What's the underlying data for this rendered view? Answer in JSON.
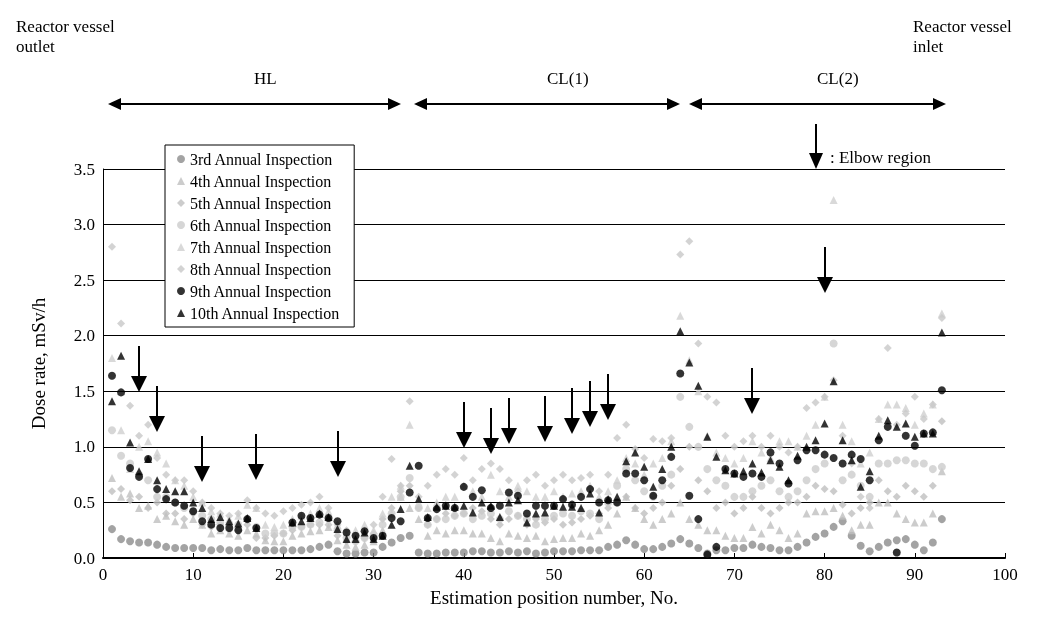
{
  "chart_data": {
    "type": "scatter",
    "xlabel": "Estimation position number, No.",
    "ylabel": "Dose rate, mSv/h",
    "xlim": [
      0,
      100
    ],
    "xticks": [
      0,
      10,
      20,
      30,
      40,
      50,
      60,
      70,
      80,
      90,
      100
    ],
    "ylim": [
      0,
      3.5
    ],
    "yticks": [
      {
        "value": 0,
        "label": "0.0"
      },
      0.5,
      {
        "value": 1,
        "label": "1.0"
      },
      1.5,
      {
        "value": 2,
        "label": "2.0"
      },
      2.5,
      {
        "value": 3,
        "label": "3.0"
      },
      3.5
    ],
    "grid": "y",
    "legend": "top left",
    "x": [
      1,
      2,
      3,
      4,
      5,
      6,
      7,
      8,
      9,
      10,
      11,
      12,
      13,
      14,
      15,
      16,
      17,
      18,
      19,
      20,
      21,
      22,
      23,
      24,
      25,
      26,
      27,
      28,
      29,
      30,
      31,
      32,
      33,
      34,
      35,
      36,
      37,
      38,
      39,
      40,
      41,
      42,
      43,
      44,
      45,
      46,
      47,
      48,
      49,
      50,
      51,
      52,
      53,
      54,
      55,
      56,
      57,
      58,
      59,
      60,
      61,
      62,
      63,
      64,
      65,
      66,
      67,
      68,
      69,
      70,
      71,
      72,
      73,
      74,
      75,
      76,
      77,
      78,
      79,
      80,
      81,
      82,
      83,
      84,
      85,
      86,
      87,
      88,
      89,
      90,
      91,
      92,
      93
    ],
    "series": [
      {
        "name": "3rd Annual Inspection",
        "color": "#8c8c8c",
        "marker": "circle",
        "values": [
          0.26,
          0.17,
          0.15,
          0.14,
          0.14,
          0.12,
          0.1,
          0.09,
          0.09,
          0.09,
          0.09,
          0.07,
          0.08,
          0.07,
          0.07,
          0.09,
          0.07,
          0.07,
          0.07,
          0.07,
          0.07,
          0.07,
          0.08,
          0.1,
          0.12,
          0.06,
          0.04,
          0.04,
          0.05,
          0.05,
          0.1,
          0.14,
          0.18,
          0.2,
          0.05,
          0.04,
          0.04,
          0.05,
          0.05,
          0.05,
          0.06,
          0.06,
          0.05,
          0.05,
          0.06,
          0.05,
          0.06,
          0.04,
          0.05,
          0.06,
          0.06,
          0.06,
          0.07,
          0.07,
          0.07,
          0.1,
          0.12,
          0.16,
          0.12,
          0.08,
          0.08,
          0.1,
          0.13,
          0.17,
          0.13,
          0.09,
          0.04,
          0.07,
          0.07,
          0.09,
          0.09,
          0.12,
          0.1,
          0.09,
          0.07,
          0.07,
          0.1,
          0.14,
          0.19,
          0.22,
          0.28,
          0.33,
          0.2,
          0.11,
          0.06,
          0.1,
          0.14,
          0.16,
          0.17,
          0.12,
          0.07,
          0.14,
          0.35
        ]
      },
      {
        "name": "4th Annual Inspection",
        "color": "#bfbfbf",
        "marker": "triangle",
        "values": [
          0.72,
          0.55,
          0.58,
          0.45,
          0.47,
          0.35,
          0.38,
          0.33,
          0.3,
          0.35,
          0.3,
          0.22,
          0.25,
          0.22,
          0.2,
          0.25,
          0.22,
          0.16,
          0.15,
          0.15,
          0.2,
          0.22,
          0.24,
          0.25,
          0.28,
          0.16,
          0.12,
          0.1,
          0.12,
          0.15,
          0.25,
          0.4,
          0.55,
          0.45,
          0.35,
          0.2,
          0.25,
          0.22,
          0.25,
          0.25,
          0.22,
          0.22,
          0.18,
          0.15,
          0.22,
          0.2,
          0.18,
          0.2,
          0.15,
          0.17,
          0.18,
          0.18,
          0.22,
          0.2,
          0.25,
          0.3,
          0.4,
          0.55,
          0.45,
          0.35,
          0.3,
          0.35,
          0.4,
          0.5,
          0.35,
          0.3,
          0.25,
          0.25,
          0.2,
          0.18,
          0.18,
          0.28,
          0.22,
          0.3,
          0.25,
          0.18,
          0.22,
          0.4,
          0.42,
          0.42,
          0.45,
          0.38,
          0.25,
          0.3,
          0.3,
          0.5,
          0.5,
          0.4,
          0.35,
          0.32,
          0.32,
          0.4,
          0.78
        ]
      },
      {
        "name": "5th Annual Inspection",
        "color": "#bfbfbf",
        "marker": "diamond",
        "values": [
          0.6,
          0.62,
          0.52,
          0.55,
          0.45,
          0.5,
          0.4,
          0.4,
          0.35,
          0.4,
          0.3,
          0.28,
          0.3,
          0.25,
          0.25,
          0.3,
          0.18,
          0.18,
          0.2,
          0.22,
          0.25,
          0.28,
          0.3,
          0.3,
          0.3,
          0.2,
          0.15,
          0.15,
          0.18,
          0.22,
          0.35,
          0.45,
          0.6,
          0.65,
          0.45,
          0.3,
          0.35,
          0.4,
          0.38,
          0.4,
          0.45,
          0.42,
          0.35,
          0.3,
          0.35,
          0.38,
          0.3,
          0.35,
          0.32,
          0.35,
          0.3,
          0.32,
          0.35,
          0.38,
          0.4,
          0.45,
          0.5,
          0.55,
          0.45,
          0.4,
          0.45,
          0.5,
          0.65,
          0.8,
          1.0,
          0.7,
          0.6,
          0.45,
          0.5,
          0.4,
          0.45,
          0.55,
          0.45,
          0.4,
          0.45,
          0.5,
          0.5,
          0.55,
          0.65,
          0.62,
          0.6,
          0.48,
          0.4,
          0.45,
          0.5,
          0.7,
          0.6,
          0.55,
          0.65,
          0.6,
          0.55,
          0.65,
          1.23
        ]
      },
      {
        "name": "6th Annual Inspection",
        "color": "#cccccc",
        "marker": "circle",
        "values": [
          1.15,
          0.92,
          0.85,
          0.75,
          0.7,
          0.55,
          0.55,
          0.5,
          0.45,
          0.42,
          0.38,
          0.35,
          0.32,
          0.3,
          0.3,
          0.35,
          0.28,
          0.22,
          0.22,
          0.22,
          0.28,
          0.28,
          0.3,
          0.32,
          0.35,
          0.25,
          0.18,
          0.15,
          0.18,
          0.2,
          0.3,
          0.4,
          0.55,
          0.72,
          0.45,
          0.3,
          0.35,
          0.35,
          0.38,
          0.4,
          0.35,
          0.38,
          0.4,
          0.35,
          0.42,
          0.38,
          0.35,
          0.3,
          0.35,
          0.38,
          0.4,
          0.38,
          0.42,
          0.4,
          0.35,
          0.5,
          0.65,
          0.8,
          0.7,
          0.6,
          0.55,
          0.65,
          0.75,
          1.45,
          1.18,
          1.0,
          0.8,
          0.7,
          0.65,
          0.55,
          0.55,
          0.6,
          0.65,
          0.7,
          0.6,
          0.55,
          0.6,
          0.7,
          0.8,
          0.85,
          1.93,
          0.7,
          0.75,
          0.65,
          0.55,
          0.85,
          0.85,
          0.88,
          0.88,
          0.85,
          0.85,
          0.8,
          0.82
        ]
      },
      {
        "name": "7th Annual Inspection",
        "color": "#d0d0d0",
        "marker": "triangle",
        "values": [
          1.8,
          1.15,
          0.8,
          1.0,
          1.05,
          0.95,
          0.85,
          0.7,
          0.65,
          0.55,
          0.5,
          0.42,
          0.4,
          0.35,
          0.38,
          0.48,
          0.45,
          0.3,
          0.28,
          0.3,
          0.35,
          0.38,
          0.4,
          0.45,
          0.42,
          0.3,
          0.22,
          0.25,
          0.3,
          0.25,
          0.4,
          0.55,
          0.65,
          1.2,
          0.5,
          0.45,
          0.5,
          0.55,
          0.55,
          0.65,
          0.6,
          0.55,
          0.75,
          0.6,
          0.55,
          0.65,
          0.6,
          0.55,
          0.55,
          0.6,
          0.55,
          0.58,
          0.6,
          0.65,
          0.55,
          0.6,
          0.7,
          0.9,
          0.85,
          0.75,
          0.85,
          0.9,
          1.05,
          2.18,
          1.78,
          1.5,
          1.1,
          0.95,
          0.9,
          0.85,
          0.9,
          1.05,
          0.95,
          0.9,
          1.05,
          1.05,
          1.0,
          1.1,
          1.2,
          1.45,
          3.22,
          1.2,
          1.05,
          0.85,
          0.95,
          1.25,
          1.38,
          1.38,
          1.35,
          1.2,
          1.3,
          1.38,
          2.2
        ]
      },
      {
        "name": "8th Annual Inspection",
        "color": "#c8c8c8",
        "marker": "diamond",
        "values": [
          2.8,
          2.11,
          1.37,
          1.1,
          1.2,
          0.9,
          0.75,
          0.7,
          0.7,
          0.6,
          0.5,
          0.45,
          0.4,
          0.38,
          0.4,
          0.52,
          0.45,
          0.4,
          0.38,
          0.42,
          0.45,
          0.48,
          0.5,
          0.55,
          0.45,
          0.3,
          0.25,
          0.2,
          0.25,
          0.3,
          0.55,
          0.89,
          0.65,
          1.41,
          0.55,
          0.65,
          0.75,
          0.8,
          0.75,
          0.9,
          0.7,
          0.8,
          0.85,
          0.8,
          0.7,
          0.6,
          0.7,
          0.75,
          0.65,
          0.7,
          0.75,
          0.7,
          0.72,
          0.75,
          0.6,
          0.75,
          1.08,
          1.2,
          0.98,
          0.9,
          1.07,
          1.05,
          1.08,
          2.73,
          2.85,
          1.93,
          1.45,
          1.4,
          1.1,
          1.0,
          1.05,
          1.1,
          1.0,
          1.1,
          1.0,
          0.95,
          1.0,
          1.35,
          1.4,
          1.45,
          1.6,
          1.1,
          0.85,
          0.55,
          0.45,
          1.25,
          1.89,
          1.2,
          1.3,
          1.45,
          1.25,
          1.38,
          2.16
        ]
      },
      {
        "name": "9th Annual Inspection",
        "color": "#000000",
        "marker": "circle",
        "values": [
          1.64,
          1.49,
          0.81,
          0.73,
          0.89,
          0.62,
          0.53,
          0.5,
          0.47,
          0.42,
          0.33,
          0.3,
          0.27,
          0.27,
          0.25,
          0.35,
          0.27,
          null,
          null,
          null,
          0.32,
          0.38,
          0.36,
          0.39,
          0.36,
          0.33,
          0.23,
          0.2,
          0.24,
          0.18,
          0.2,
          0.36,
          0.33,
          0.59,
          0.83,
          0.36,
          0.44,
          0.47,
          0.45,
          0.64,
          0.55,
          0.61,
          0.45,
          0.47,
          0.59,
          0.56,
          0.4,
          0.47,
          0.47,
          0.47,
          0.53,
          0.48,
          0.55,
          0.62,
          0.5,
          0.52,
          0.5,
          0.76,
          0.76,
          0.7,
          0.56,
          0.7,
          0.91,
          1.66,
          0.56,
          0.35,
          0.03,
          0.1,
          0.8,
          0.76,
          0.73,
          0.76,
          0.73,
          0.95,
          0.85,
          0.67,
          0.88,
          0.97,
          0.97,
          0.93,
          0.9,
          0.85,
          0.93,
          0.89,
          0.7,
          1.06,
          1.18,
          0.05,
          1.1,
          1.01,
          1.12,
          1.13,
          1.51
        ]
      },
      {
        "name": "10th Annual Inspection",
        "color": "#000000",
        "marker": "triangle",
        "values": [
          1.41,
          1.82,
          1.04,
          0.78,
          0.89,
          0.7,
          0.62,
          0.6,
          0.6,
          0.5,
          0.45,
          0.35,
          0.37,
          0.33,
          0.31,
          0.36,
          0.27,
          null,
          null,
          null,
          0.32,
          0.33,
          0.36,
          0.4,
          0.37,
          0.26,
          0.17,
          0.17,
          0.23,
          0.17,
          0.2,
          0.3,
          0.44,
          0.83,
          0.53,
          0.37,
          0.46,
          0.47,
          0.46,
          0.47,
          0.41,
          0.5,
          0.47,
          0.37,
          0.5,
          0.52,
          0.32,
          0.4,
          0.41,
          0.47,
          0.46,
          0.46,
          0.45,
          0.58,
          0.41,
          0.53,
          0.55,
          0.87,
          0.95,
          0.82,
          0.64,
          0.8,
          1.0,
          2.04,
          1.76,
          1.55,
          1.09,
          0.91,
          0.79,
          0.76,
          0.78,
          0.85,
          0.77,
          0.88,
          0.82,
          0.7,
          0.92,
          1.0,
          1.06,
          1.21,
          1.59,
          1.06,
          0.88,
          0.64,
          0.78,
          1.1,
          1.24,
          1.18,
          1.21,
          1.09,
          1.12,
          1.12,
          2.03
        ]
      }
    ],
    "annotations": [
      "Reactor vessel outlet",
      "Reactor vessel inlet",
      ": Elbow region",
      "HL",
      "CL(1)",
      "CL(2)"
    ]
  }
}
